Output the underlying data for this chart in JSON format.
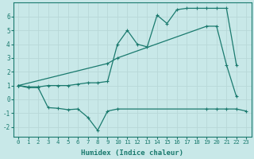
{
  "line1_x": [
    0,
    1,
    2,
    3,
    4,
    5,
    6,
    7,
    8,
    9,
    10,
    11,
    12,
    13,
    14,
    15,
    16,
    17,
    18,
    19,
    20,
    21,
    22,
    23
  ],
  "line1_y": [
    1.0,
    0.9,
    0.9,
    1.0,
    1.0,
    1.0,
    1.1,
    1.2,
    1.2,
    1.3,
    4.0,
    5.0,
    4.0,
    3.8,
    6.1,
    5.5,
    6.5,
    6.6,
    6.6,
    6.6,
    6.6,
    6.6,
    2.5,
    null
  ],
  "line2_x": [
    0,
    9,
    10,
    19,
    20,
    21,
    22
  ],
  "line2_y": [
    1.0,
    2.6,
    3.0,
    5.3,
    5.3,
    2.5,
    0.2
  ],
  "line3_x": [
    0,
    1,
    2,
    3,
    4,
    5,
    6,
    7,
    8,
    9,
    10,
    19,
    20,
    21,
    22,
    23
  ],
  "line3_y": [
    1.0,
    0.85,
    0.85,
    -0.6,
    -0.65,
    -0.75,
    -0.7,
    -1.3,
    -2.25,
    -0.85,
    -0.7,
    -0.7,
    -0.7,
    -0.7,
    -0.7,
    -0.85
  ],
  "color": "#1a7a6e",
  "bg_color": "#c8e8e8",
  "grid_color": "#b8d8d8",
  "xlabel": "Humidex (Indice chaleur)",
  "ylim": [
    -2.7,
    7.0
  ],
  "xlim": [
    -0.5,
    23.5
  ],
  "yticks": [
    -2,
    -1,
    0,
    1,
    2,
    3,
    4,
    5,
    6
  ],
  "xticks": [
    0,
    1,
    2,
    3,
    4,
    5,
    6,
    7,
    8,
    9,
    10,
    11,
    12,
    13,
    14,
    15,
    16,
    17,
    18,
    19,
    20,
    21,
    22,
    23
  ]
}
